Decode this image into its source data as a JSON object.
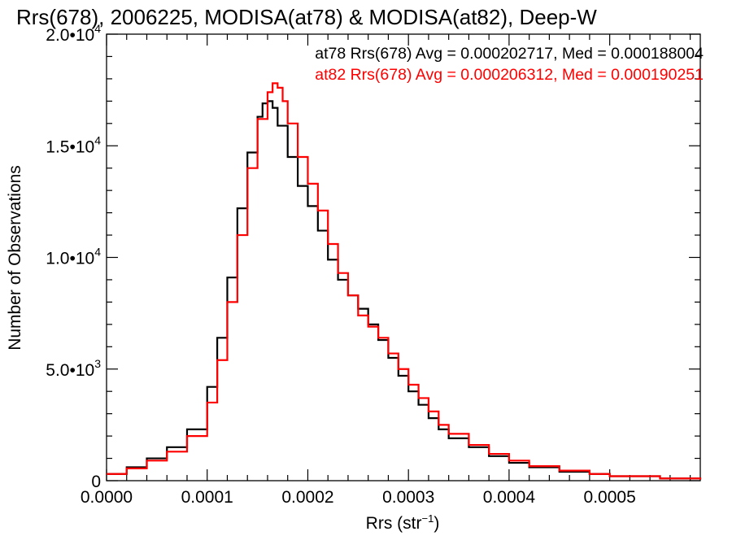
{
  "chart_data": {
    "type": "line",
    "title": "Rrs(678), 2006225, MODISA(at78) & MODISA(at82), Deep-W",
    "xlabel": "Rrs (str",
    "xlabel_sup": "−1",
    "xlabel_close": ")",
    "ylabel": "Number of Observations",
    "xlim": [
      0,
      0.00059
    ],
    "ylim": [
      0,
      20000
    ],
    "x_ticks": [
      {
        "value": 0.0,
        "label": "0.0000"
      },
      {
        "value": 0.0001,
        "label": "0.0001"
      },
      {
        "value": 0.0002,
        "label": "0.0002"
      },
      {
        "value": 0.0003,
        "label": "0.0003"
      },
      {
        "value": 0.0004,
        "label": "0.0004"
      },
      {
        "value": 0.0005,
        "label": "0.0005"
      }
    ],
    "y_ticks": [
      {
        "value": 0,
        "mant": "0",
        "exp": ""
      },
      {
        "value": 5000,
        "mant": "5.0•10",
        "exp": "3"
      },
      {
        "value": 10000,
        "mant": "1.0•10",
        "exp": "4"
      },
      {
        "value": 15000,
        "mant": "1.5•10",
        "exp": "4"
      },
      {
        "value": 20000,
        "mant": "2.0•10",
        "exp": "4"
      }
    ],
    "annotations": [
      {
        "text": "at78 Rrs(678) Avg = 0.000202717, Med = 0.000188004",
        "color": "#000000"
      },
      {
        "text": "at82 Rrs(678) Avg = 0.000206312, Med = 0.000190251",
        "color": "#ff0000"
      }
    ],
    "series": [
      {
        "color": "#000000",
        "x": [
          0.0,
          2e-05,
          4e-05,
          6e-05,
          8e-05,
          0.0001,
          0.00011,
          0.00012,
          0.00013,
          0.00014,
          0.00015,
          0.000155,
          0.00016,
          0.000165,
          0.00017,
          0.00018,
          0.00019,
          0.0002,
          0.00021,
          0.00022,
          0.00023,
          0.00024,
          0.00025,
          0.00026,
          0.00027,
          0.00028,
          0.00029,
          0.0003,
          0.00031,
          0.00032,
          0.00033,
          0.00034,
          0.00036,
          0.00038,
          0.0004,
          0.00042,
          0.00045,
          0.00048,
          0.0005,
          0.00055,
          0.00059
        ],
        "y": [
          300,
          600,
          1000,
          1500,
          2300,
          4200,
          6400,
          9100,
          12200,
          14700,
          16300,
          16900,
          17000,
          16700,
          15900,
          14500,
          13200,
          12300,
          11200,
          9900,
          9000,
          8300,
          7700,
          7000,
          6300,
          5500,
          4700,
          4000,
          3400,
          2800,
          2300,
          1900,
          1500,
          1100,
          800,
          600,
          400,
          300,
          200,
          100,
          50
        ]
      },
      {
        "color": "#ff0000",
        "x": [
          0.0,
          2e-05,
          4e-05,
          6e-05,
          8e-05,
          0.0001,
          0.00011,
          0.00012,
          0.00013,
          0.00014,
          0.00015,
          0.00016,
          0.000165,
          0.00017,
          0.000175,
          0.00018,
          0.00019,
          0.0002,
          0.00021,
          0.00022,
          0.00023,
          0.00024,
          0.00025,
          0.00026,
          0.00027,
          0.00028,
          0.00029,
          0.0003,
          0.00031,
          0.00032,
          0.00033,
          0.00034,
          0.00036,
          0.00038,
          0.0004,
          0.00042,
          0.00045,
          0.00048,
          0.0005,
          0.00055,
          0.00059
        ],
        "y": [
          300,
          550,
          900,
          1300,
          2000,
          3500,
          5400,
          8000,
          11000,
          14000,
          16200,
          17400,
          17800,
          17600,
          17000,
          16000,
          14500,
          13300,
          12100,
          10600,
          9300,
          8300,
          7400,
          6900,
          6400,
          5700,
          5000,
          4300,
          3700,
          3100,
          2500,
          2100,
          1600,
          1200,
          900,
          650,
          450,
          300,
          200,
          100,
          50
        ]
      }
    ]
  }
}
